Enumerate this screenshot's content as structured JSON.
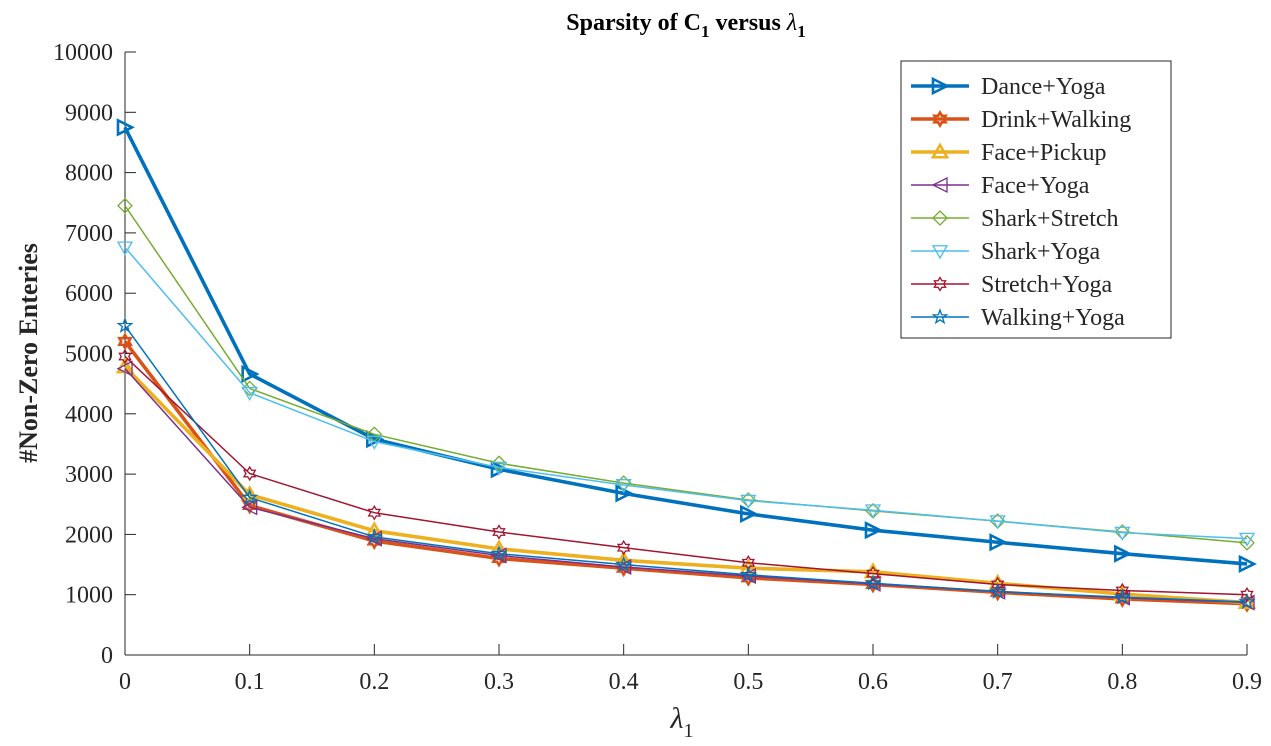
{
  "chart_data": {
    "type": "line",
    "title": "Sparsity of C",
    "title_sub": "1",
    "title_mid": " versus ",
    "title_lambda": "λ",
    "title_lambda_sub": "1",
    "xlabel": "λ",
    "xlabel_sub": "1",
    "ylabel": "#Non-Zero Enteries",
    "x": [
      0,
      0.1,
      0.2,
      0.3,
      0.4,
      0.5,
      0.6,
      0.7,
      0.8,
      0.9
    ],
    "xlim": [
      0,
      0.9
    ],
    "ylim": [
      0,
      10000
    ],
    "xticks": [
      "0",
      "0.1",
      "0.2",
      "0.3",
      "0.4",
      "0.5",
      "0.6",
      "0.7",
      "0.8",
      "0.9"
    ],
    "yticks": [
      "0",
      "1000",
      "2000",
      "3000",
      "4000",
      "5000",
      "6000",
      "7000",
      "8000",
      "9000",
      "10000"
    ],
    "grid": false,
    "legend_position": "top-right",
    "series": [
      {
        "name": "Dance+Yoga",
        "color": "#0072BD",
        "marker": "triangle-right",
        "width": "thick",
        "values": [
          8750,
          4660,
          3580,
          3080,
          2680,
          2340,
          2070,
          1870,
          1680,
          1510
        ]
      },
      {
        "name": "Drink+Walking",
        "color": "#D95319",
        "marker": "hexagram",
        "width": "thick",
        "values": [
          5200,
          2480,
          1890,
          1600,
          1440,
          1280,
          1170,
          1040,
          930,
          850
        ]
      },
      {
        "name": "Face+Pickup",
        "color": "#EDB120",
        "marker": "triangle-up",
        "width": "thick",
        "values": [
          4780,
          2660,
          2060,
          1760,
          1570,
          1440,
          1380,
          1190,
          1010,
          870
        ]
      },
      {
        "name": "Face+Yoga",
        "color": "#7E2F8E",
        "marker": "triangle-left",
        "width": "thin",
        "values": [
          4750,
          2450,
          1930,
          1650,
          1460,
          1310,
          1180,
          1050,
          950,
          870
        ]
      },
      {
        "name": "Shark+Stretch",
        "color": "#77AC30",
        "marker": "diamond",
        "width": "thin",
        "values": [
          7450,
          4420,
          3660,
          3180,
          2850,
          2570,
          2390,
          2220,
          2040,
          1860
        ]
      },
      {
        "name": "Shark+Yoga",
        "color": "#4DBEEE",
        "marker": "triangle-down",
        "width": "thin",
        "values": [
          6760,
          4350,
          3540,
          3110,
          2820,
          2560,
          2400,
          2220,
          2030,
          1930
        ]
      },
      {
        "name": "Stretch+Yoga",
        "color": "#A2142F",
        "marker": "hexagram",
        "width": "thin",
        "values": [
          4950,
          3010,
          2360,
          2040,
          1780,
          1530,
          1350,
          1170,
          1070,
          1000
        ]
      },
      {
        "name": "Walking+Yoga",
        "color": "#0072BD",
        "marker": "pentagram",
        "width": "thin",
        "values": [
          5460,
          2610,
          1960,
          1680,
          1500,
          1330,
          1190,
          1050,
          960,
          880
        ]
      }
    ]
  }
}
